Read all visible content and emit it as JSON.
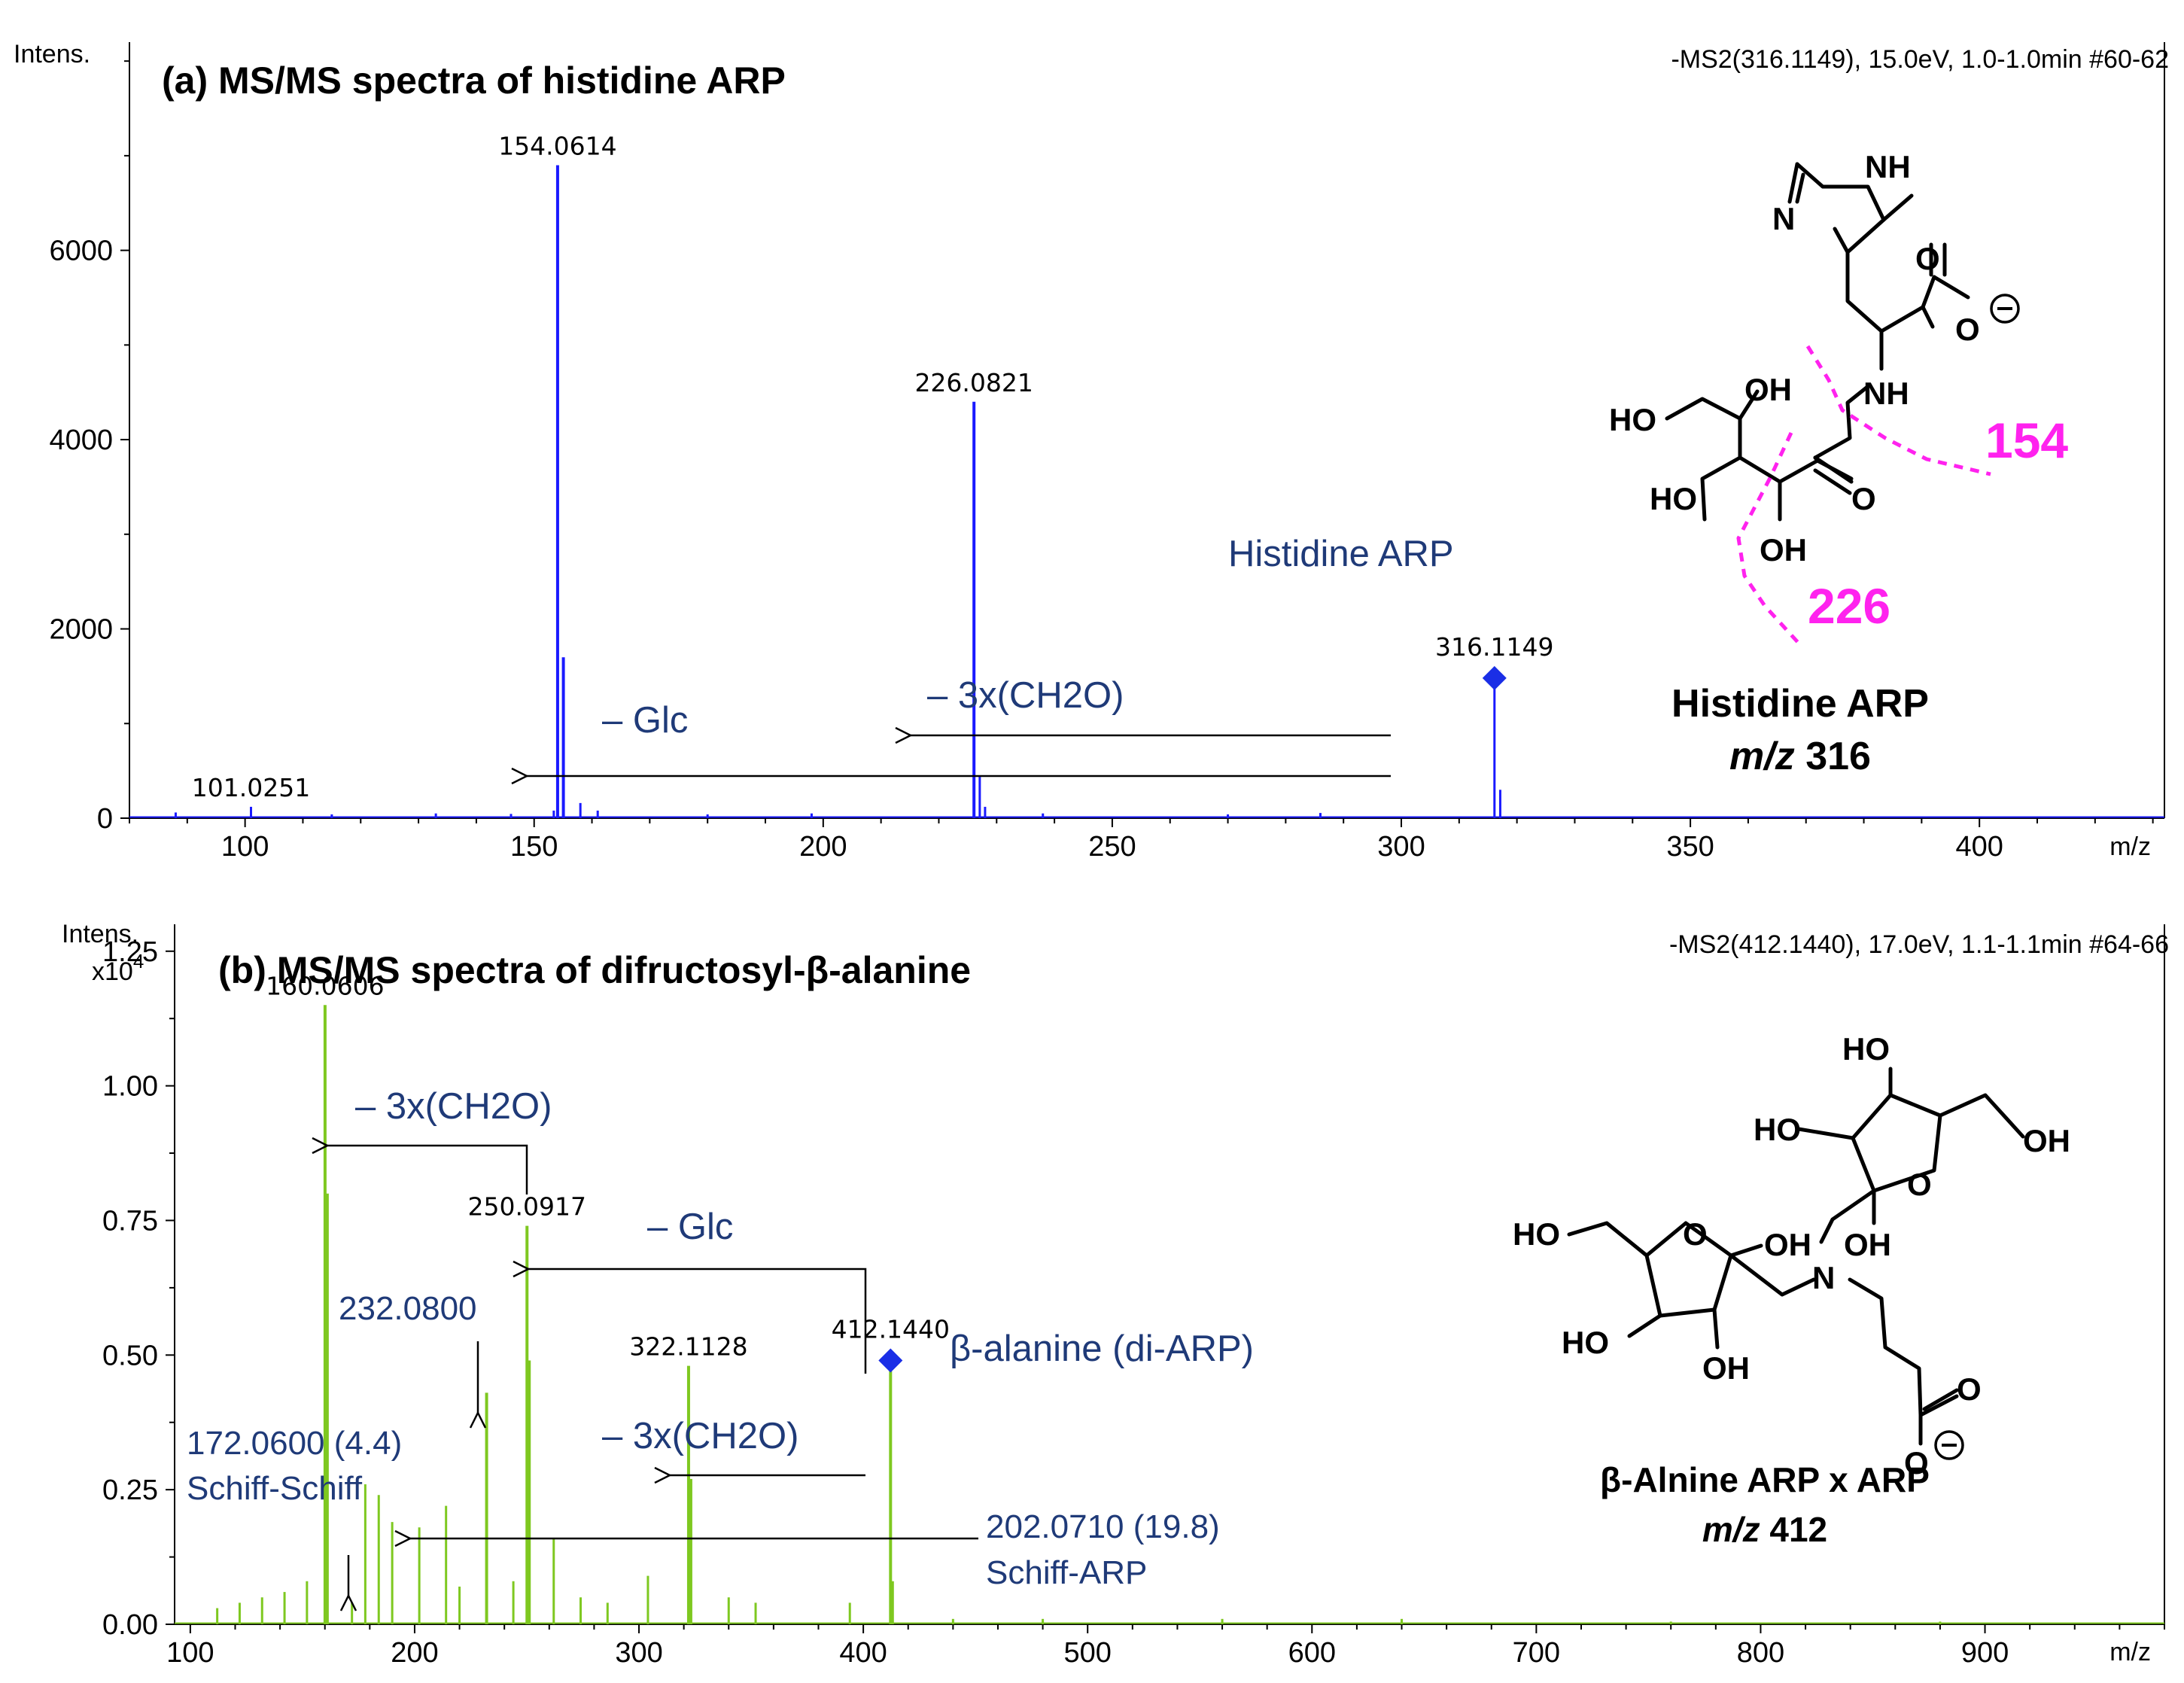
{
  "chart_data": [
    {
      "type": "bar",
      "panel": "a",
      "title": "(a) MS/MS spectra of histidine ARP",
      "header": "-MS2(316.1149), 15.0eV, 1.0-1.0min #60-62",
      "ylabel": "Intens.",
      "xlabel": "m/z",
      "xlim": [
        80,
        432
      ],
      "ylim": [
        0,
        8200
      ],
      "xticks": [
        100,
        150,
        200,
        250,
        300,
        350,
        400
      ],
      "yticks": [
        0,
        2000,
        4000,
        6000
      ],
      "color": "#1a1aff",
      "series": [
        {
          "x": [
            88,
            101.0251,
            115,
            133,
            146,
            153.4,
            154.0614,
            155.06,
            158,
            161,
            180,
            198,
            226.0821,
            227.08,
            228,
            238,
            270,
            286,
            316.1149,
            317.11
          ],
          "y": [
            60,
            120,
            40,
            50,
            45,
            80,
            6900,
            1700,
            160,
            80,
            40,
            50,
            4400,
            450,
            120,
            50,
            40,
            55,
            1400,
            300
          ]
        }
      ],
      "peak_labels": [
        {
          "mz": "101.0251",
          "x": 101.0251,
          "y": 120
        },
        {
          "mz": "154.0614",
          "x": 154.0614,
          "y": 6900
        },
        {
          "mz": "226.0821",
          "x": 226.0821,
          "y": 4400
        },
        {
          "mz": "316.1149",
          "x": 316.1149,
          "y": 1400
        }
      ],
      "precursor": {
        "x": 316.1149,
        "y": 1480
      },
      "annotations": {
        "precursor_name": "Histidine ARP",
        "loss_glc": "– Glc",
        "loss_ch2o": "– 3x(CH2O)"
      },
      "structure": {
        "atoms": [
          "NH",
          "N",
          "O",
          "O",
          "NH",
          "HO",
          "OH",
          "HO",
          "O",
          "OH"
        ],
        "fragments": [
          "154",
          "226"
        ],
        "name": "Histidine ARP",
        "mz_prefix": "m/z",
        "mz_value": "316"
      }
    },
    {
      "type": "bar",
      "panel": "b",
      "title": "(b) MS/MS spectra of difructosyl-β-alanine",
      "header": "-MS2(412.1440), 17.0eV, 1.1-1.1min #64-66",
      "ylabel": "Intens.",
      "yscale_label": "x10",
      "yscale_exp": "4",
      "xlabel": "m/z",
      "xlim": [
        93,
        980
      ],
      "ylim": [
        0,
        1.3
      ],
      "xticks": [
        100,
        200,
        300,
        400,
        500,
        600,
        700,
        800,
        900
      ],
      "yticks": [
        "0.00",
        "0.25",
        "0.50",
        "0.75",
        "1.00",
        "1.25"
      ],
      "color": "#7ec820",
      "series": [
        {
          "x": [
            112,
            122,
            132,
            142,
            152,
            160.0606,
            161.06,
            172.06,
            178,
            184,
            190,
            202.071,
            214,
            220,
            232.08,
            244,
            250.0917,
            251.09,
            262,
            274,
            286,
            304,
            322.1128,
            323.11,
            340,
            352,
            394,
            412.144,
            413.14,
            440,
            480,
            560,
            640,
            760,
            880
          ],
          "y": [
            0.03,
            0.04,
            0.05,
            0.06,
            0.08,
            1.15,
            0.8,
            0.04,
            0.26,
            0.24,
            0.19,
            0.18,
            0.22,
            0.07,
            0.43,
            0.08,
            0.74,
            0.49,
            0.16,
            0.05,
            0.04,
            0.09,
            0.48,
            0.27,
            0.05,
            0.04,
            0.04,
            0.47,
            0.08,
            0.01,
            0.01,
            0.01,
            0.01,
            0.005,
            0.005
          ]
        }
      ],
      "peak_labels": [
        {
          "mz": "160.0606",
          "x": 160.0606,
          "y": 1.15
        },
        {
          "mz": "250.0917",
          "x": 250.0917,
          "y": 0.74
        },
        {
          "mz": "322.1128",
          "x": 322.1128,
          "y": 0.48
        },
        {
          "mz": "412.1440",
          "x": 412.144,
          "y": 0.47
        }
      ],
      "precursor": {
        "x": 412.144,
        "y": 0.49
      },
      "annotations": {
        "precursor_name": "β-alanine (di-ARP)",
        "loss_ch2o_top": "– 3x(CH2O)",
        "loss_glc": "– Glc",
        "loss_ch2o_mid": "– 3x(CH2O)",
        "mz_232": "232.0800",
        "ss_value": "172.0600 (4.4)",
        "ss_name": "Schiff-Schiff",
        "sa_value": "202.0710 (19.8)",
        "sa_name": "Schiff-ARP"
      },
      "structure": {
        "atoms": [
          "HO",
          "HO",
          "OH",
          "O",
          "HO",
          "O",
          "OH",
          "N",
          "OH",
          "HO",
          "OH",
          "O",
          "O"
        ],
        "name": "β-Alnine ARP x ARP",
        "mz_prefix": "m/z",
        "mz_value": "412"
      }
    }
  ]
}
